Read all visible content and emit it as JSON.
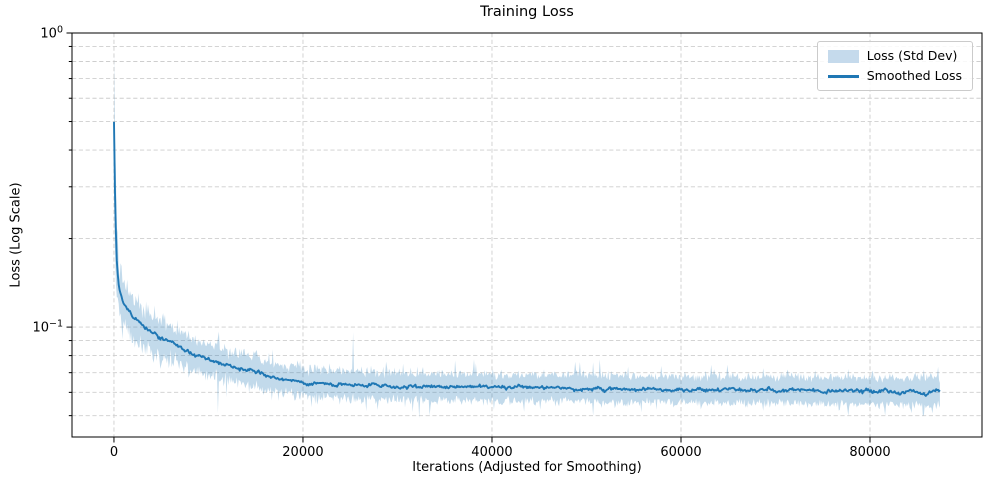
{
  "figure": {
    "title": "Training Loss",
    "xlabel": "Iterations (Adjusted for Smoothing)",
    "ylabel": "Loss (Log Scale)",
    "legend": [
      {
        "label": "Loss (Std Dev)",
        "type": "patch",
        "color": "#c5daec"
      },
      {
        "label": "Smoothed Loss",
        "type": "line",
        "color": "#1f77b4"
      }
    ]
  },
  "chart_data": {
    "type": "line",
    "title": "Training Loss",
    "xlabel": "Iterations (Adjusted for Smoothing)",
    "ylabel": "Loss (Log Scale)",
    "yscale": "log",
    "xlim": [
      -4440,
      91850
    ],
    "ylim": [
      0.0423,
      1.0
    ],
    "grid": {
      "which": "both",
      "style": "dashed",
      "color": "#c6c6c6"
    },
    "xticks": [
      0,
      20000,
      40000,
      60000,
      80000
    ],
    "yticks_major": [
      {
        "value": 1.0,
        "base": "10",
        "exp": "0"
      },
      {
        "value": 0.1,
        "base": "10",
        "exp": "−1"
      }
    ],
    "yticks_minor": [
      0.9,
      0.8,
      0.7,
      0.6,
      0.5,
      0.4,
      0.3,
      0.2,
      0.09,
      0.08,
      0.07,
      0.06,
      0.05
    ],
    "x_end": 87400,
    "series": [
      {
        "name": "Smoothed Loss",
        "color": "#1f77b4",
        "x": [
          0,
          100,
          200,
          300,
          500,
          700,
          1000,
          1500,
          2000,
          3000,
          4000,
          5000,
          6000,
          7000,
          8000,
          10000,
          12000,
          14000,
          16000,
          18000,
          20000,
          24000,
          28000,
          32000,
          36000,
          40000,
          46000,
          52000,
          58000,
          64000,
          70000,
          76000,
          82000,
          87400
        ],
        "y": [
          0.5,
          0.3,
          0.21,
          0.168,
          0.138,
          0.128,
          0.12,
          0.113,
          0.108,
          0.101,
          0.0955,
          0.0915,
          0.088,
          0.085,
          0.0822,
          0.0775,
          0.0745,
          0.0718,
          0.0685,
          0.0662,
          0.065,
          0.0638,
          0.0632,
          0.0628,
          0.0627,
          0.0625,
          0.0622,
          0.0619,
          0.0616,
          0.0613,
          0.061,
          0.0607,
          0.0605,
          0.0604
        ]
      }
    ],
    "band": {
      "name": "Loss (Std Dev)",
      "color": "#1f77b4",
      "opacity": 0.27,
      "x": [
        0,
        100,
        200,
        300,
        500,
        700,
        1000,
        1500,
        2000,
        3000,
        4000,
        5000,
        6000,
        7000,
        8000,
        10000,
        12000,
        14000,
        16000,
        18000,
        20000,
        24000,
        28000,
        32000,
        36000,
        40000,
        46000,
        52000,
        58000,
        64000,
        70000,
        76000,
        82000,
        87400
      ],
      "upper": [
        0.88,
        0.46,
        0.29,
        0.22,
        0.17,
        0.154,
        0.142,
        0.132,
        0.125,
        0.116,
        0.109,
        0.104,
        0.0995,
        0.096,
        0.0925,
        0.0872,
        0.0838,
        0.0808,
        0.0772,
        0.0742,
        0.0726,
        0.071,
        0.0702,
        0.0697,
        0.0694,
        0.0692,
        0.0688,
        0.0685,
        0.0682,
        0.0679,
        0.0676,
        0.0674,
        0.0672,
        0.0671
      ],
      "lower": [
        0.3,
        0.195,
        0.15,
        0.128,
        0.112,
        0.106,
        0.1,
        0.0955,
        0.092,
        0.0865,
        0.0828,
        0.0795,
        0.077,
        0.0748,
        0.0725,
        0.0688,
        0.066,
        0.064,
        0.0618,
        0.0598,
        0.0586,
        0.0575,
        0.0569,
        0.0565,
        0.0563,
        0.0561,
        0.0558,
        0.0556,
        0.0554,
        0.0552,
        0.055,
        0.0548,
        0.0546,
        0.0545
      ]
    },
    "band_spikes": [
      {
        "x": 11000,
        "high": 0.092,
        "low": 0.051
      },
      {
        "x": 25300,
        "high": 0.096
      },
      {
        "x": 32300,
        "low": 0.049
      },
      {
        "x": 50700,
        "high": 0.076,
        "low": 0.05
      },
      {
        "x": 84400,
        "low": 0.051
      }
    ],
    "noise": {
      "line_sigma_log10": 0.006,
      "band_sigma_log10": 0.016,
      "seed": 7
    }
  }
}
